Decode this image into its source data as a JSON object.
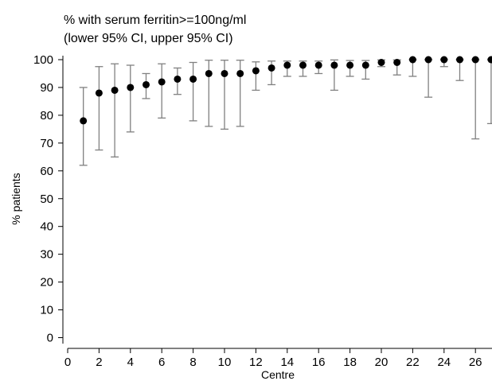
{
  "chart_data": {
    "type": "scatter",
    "title_line1": "% with serum ferritin>=100ng/ml",
    "title_line2": "(lower 95% CI, upper 95% CI)",
    "xlabel": "Centre",
    "ylabel": "% patients",
    "xlim": [
      0,
      27
    ],
    "ylim": [
      0,
      100
    ],
    "x_ticks": [
      0,
      2,
      4,
      6,
      8,
      10,
      12,
      14,
      16,
      18,
      20,
      22,
      24,
      26
    ],
    "y_ticks": [
      0,
      10,
      20,
      30,
      40,
      50,
      60,
      70,
      80,
      90,
      100
    ],
    "grid": false,
    "points": [
      {
        "x": 1,
        "y": 78,
        "lower": 62,
        "upper": 90
      },
      {
        "x": 2,
        "y": 88,
        "lower": 67.5,
        "upper": 97.5
      },
      {
        "x": 3,
        "y": 89,
        "lower": 65,
        "upper": 98.5
      },
      {
        "x": 4,
        "y": 90,
        "lower": 74,
        "upper": 98
      },
      {
        "x": 5,
        "y": 91,
        "lower": 86,
        "upper": 95
      },
      {
        "x": 6,
        "y": 92,
        "lower": 79,
        "upper": 98.5
      },
      {
        "x": 7,
        "y": 93,
        "lower": 87.5,
        "upper": 97
      },
      {
        "x": 8,
        "y": 93,
        "lower": 78,
        "upper": 99
      },
      {
        "x": 9,
        "y": 95,
        "lower": 76,
        "upper": 99.8
      },
      {
        "x": 10,
        "y": 95,
        "lower": 75,
        "upper": 99.8
      },
      {
        "x": 11,
        "y": 95,
        "lower": 76,
        "upper": 99.8
      },
      {
        "x": 12,
        "y": 96,
        "lower": 89,
        "upper": 99.2
      },
      {
        "x": 13,
        "y": 97,
        "lower": 91,
        "upper": 99.5
      },
      {
        "x": 14,
        "y": 98,
        "lower": 94,
        "upper": 99.5
      },
      {
        "x": 15,
        "y": 98,
        "lower": 94,
        "upper": 99.5
      },
      {
        "x": 16,
        "y": 98,
        "lower": 95,
        "upper": 99.5
      },
      {
        "x": 17,
        "y": 98,
        "lower": 89,
        "upper": 99.9
      },
      {
        "x": 18,
        "y": 98,
        "lower": 94,
        "upper": 99.7
      },
      {
        "x": 19,
        "y": 98,
        "lower": 93,
        "upper": 99.7
      },
      {
        "x": 20,
        "y": 99,
        "lower": 97.5,
        "upper": 99.9
      },
      {
        "x": 21,
        "y": 99,
        "lower": 94.5,
        "upper": 99.9
      },
      {
        "x": 22,
        "y": 100,
        "lower": 94,
        "upper": 100
      },
      {
        "x": 23,
        "y": 100,
        "lower": 86.5,
        "upper": 100
      },
      {
        "x": 24,
        "y": 100,
        "lower": 97.5,
        "upper": 100
      },
      {
        "x": 25,
        "y": 100,
        "lower": 92.5,
        "upper": 100
      },
      {
        "x": 26,
        "y": 100,
        "lower": 71.5,
        "upper": 100
      },
      {
        "x": 27,
        "y": 100,
        "lower": 77,
        "upper": 100
      }
    ],
    "colors": {
      "marker": "#000000",
      "error_bar": "#808080",
      "axis": "#000000"
    }
  }
}
